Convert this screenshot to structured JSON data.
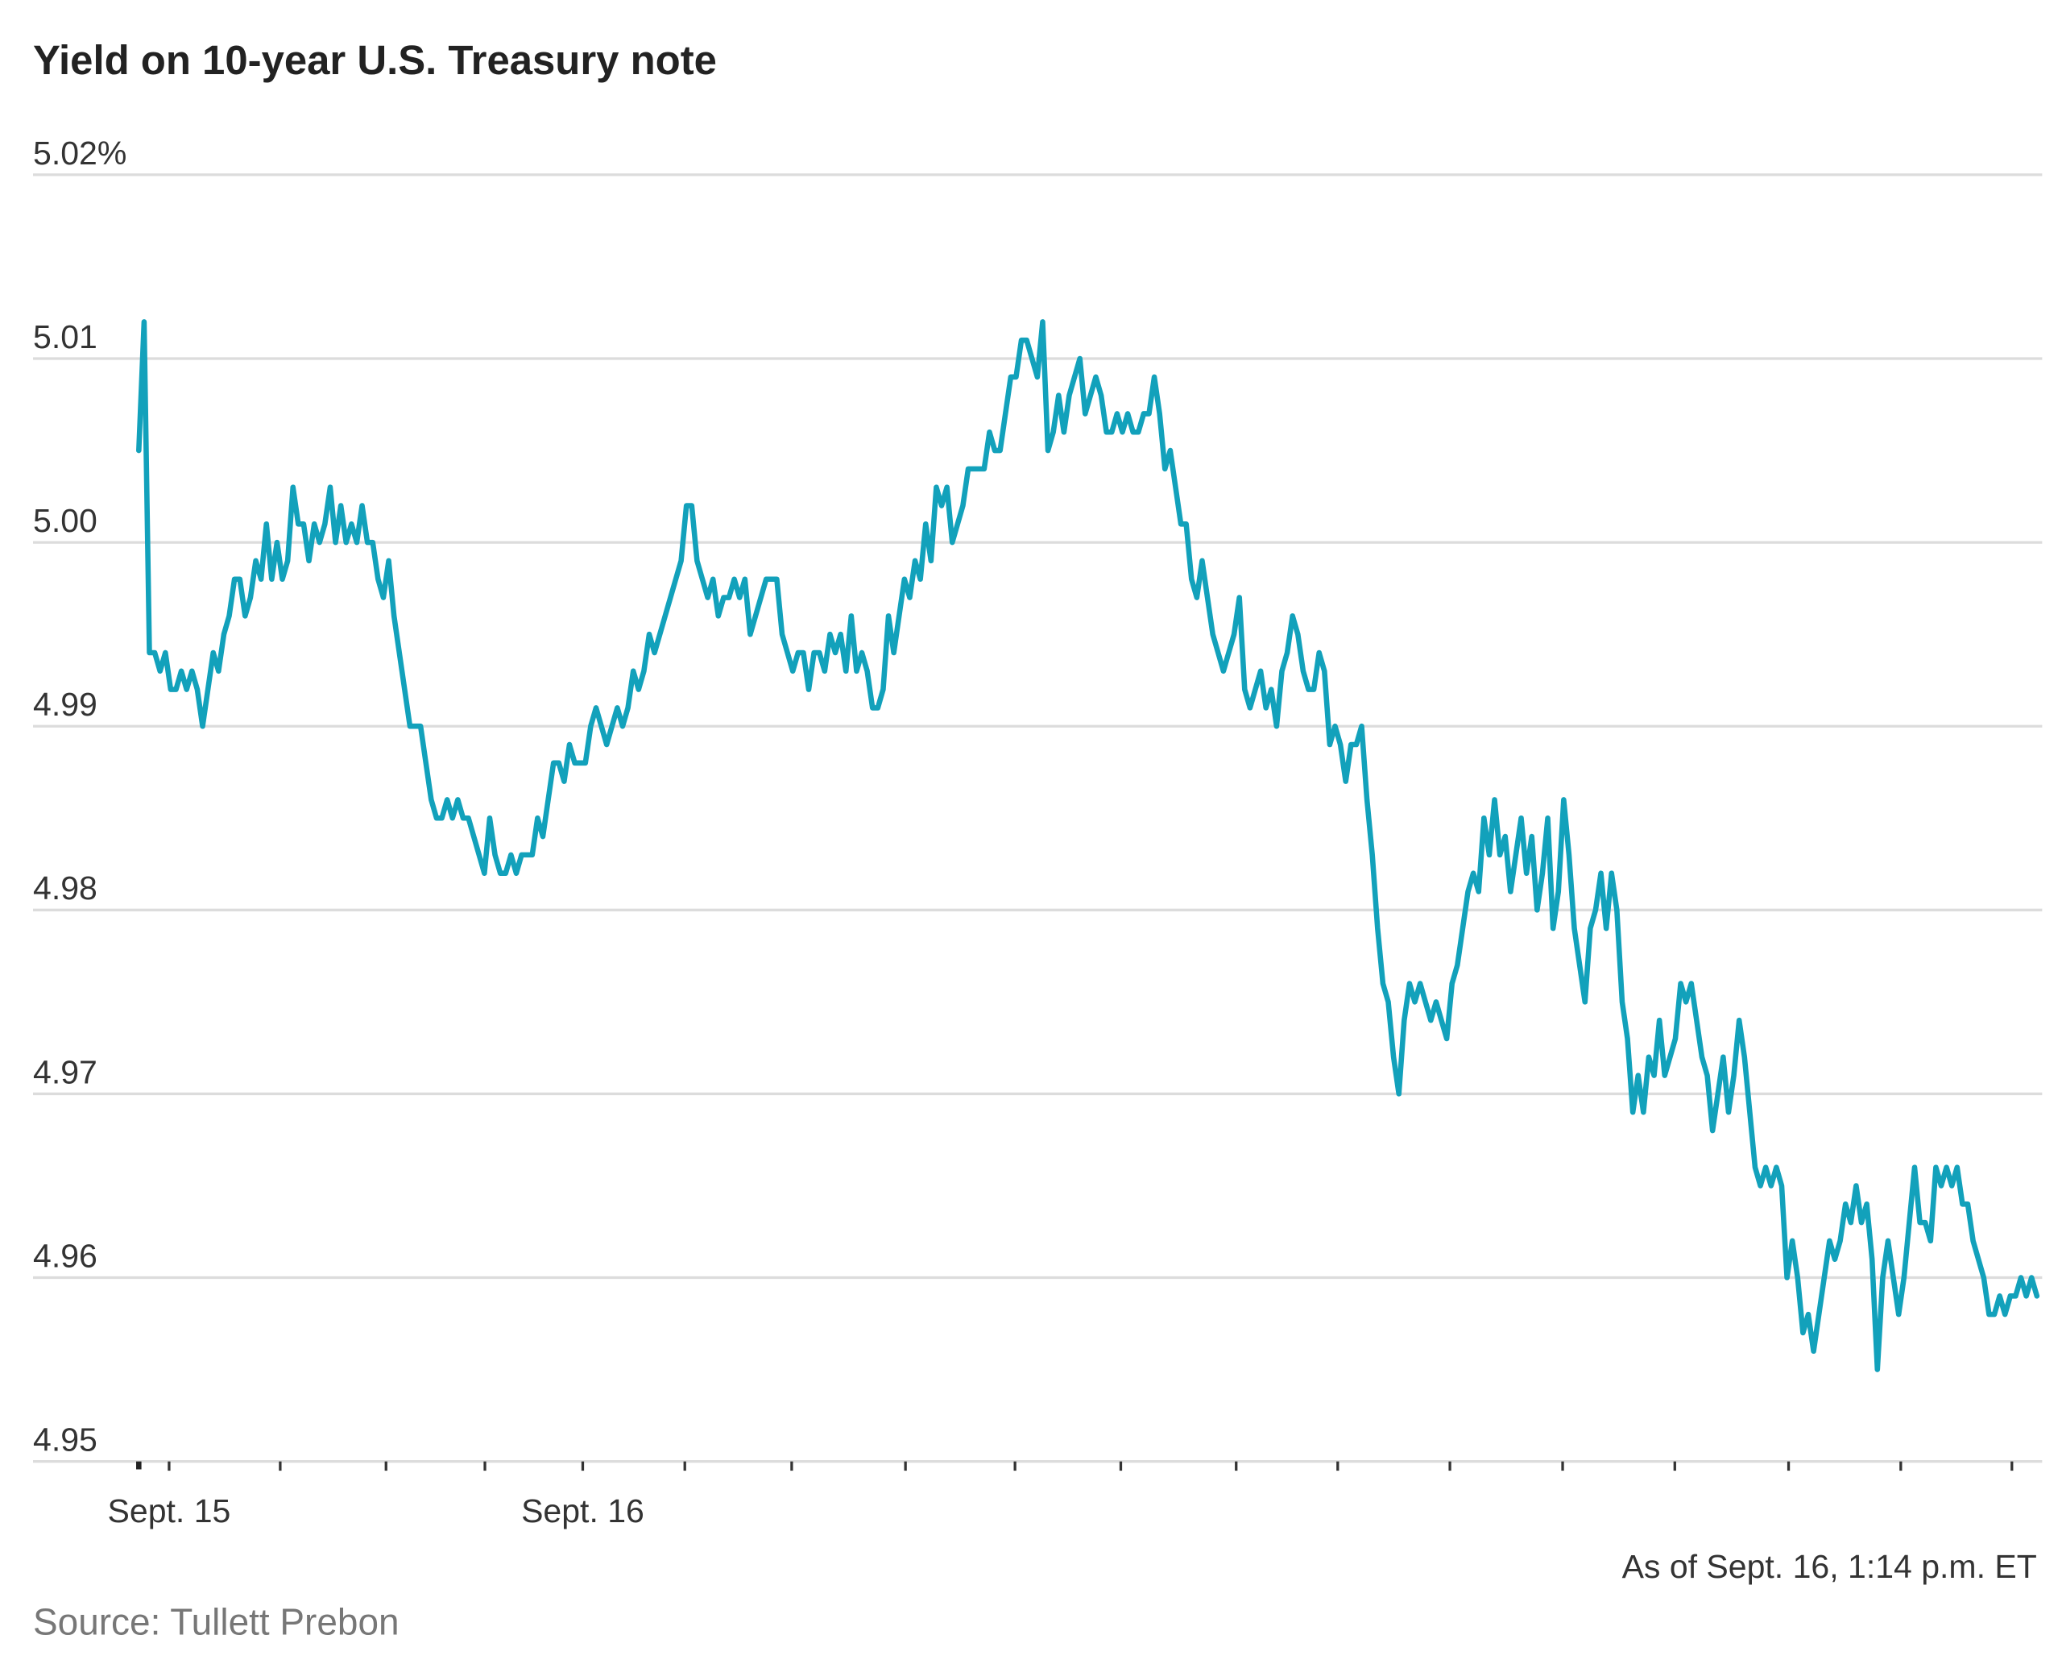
{
  "chart_data": {
    "type": "line",
    "title": "Yield on 10-year U.S. Treasury note",
    "note": "As of Sept. 16, 1:14 p.m. ET",
    "source": "Source: Tullett Prebon",
    "grid": true,
    "color": "#12a1bb",
    "xlim": [
      0,
      357
    ],
    "xticks": [
      {
        "value": 5.7,
        "label": "Sept. 15"
      },
      {
        "value": 26.6,
        "label": null
      },
      {
        "value": 46.5,
        "label": null
      },
      {
        "value": 65.1,
        "label": null
      },
      {
        "value": 83.5,
        "label": "Sept. 16"
      },
      {
        "value": 102.7,
        "label": null
      },
      {
        "value": 122.8,
        "label": null
      },
      {
        "value": 144.2,
        "label": null
      },
      {
        "value": 164.8,
        "label": null
      },
      {
        "value": 184.7,
        "label": null
      },
      {
        "value": 206.4,
        "label": null
      },
      {
        "value": 225.5,
        "label": null
      },
      {
        "value": 246.6,
        "label": null
      },
      {
        "value": 267.8,
        "label": null
      },
      {
        "value": 288.9,
        "label": null
      },
      {
        "value": 310.3,
        "label": null
      },
      {
        "value": 331.4,
        "label": null
      },
      {
        "value": 352.3,
        "label": null
      }
    ],
    "ylim": [
      4.95,
      5.02
    ],
    "yticks": [
      4.95,
      4.96,
      4.97,
      4.98,
      4.99,
      {
        "value": 5,
        "label": "5.00"
      },
      5.01,
      {
        "value": 5.02,
        "label": "5.02%"
      }
    ],
    "x": [
      0,
      1,
      2,
      3,
      4,
      5,
      6,
      7,
      8,
      9,
      10,
      11,
      12,
      13,
      14,
      15,
      16,
      17,
      18,
      19,
      20,
      21,
      22,
      23,
      24,
      25,
      26,
      27,
      28,
      29,
      30,
      31,
      32,
      33,
      34,
      35,
      36,
      37,
      38,
      39,
      40,
      41,
      42,
      43,
      44,
      45,
      46,
      47,
      48,
      49,
      50,
      51,
      52,
      53,
      54,
      55,
      56,
      57,
      58,
      59,
      60,
      61,
      62,
      63,
      64,
      65,
      66,
      67,
      68,
      69,
      70,
      71,
      72,
      73,
      74,
      75,
      76,
      77,
      78,
      79,
      80,
      81,
      82,
      83,
      84,
      85,
      86,
      87,
      88,
      89,
      90,
      91,
      92,
      93,
      94,
      95,
      96,
      97,
      98,
      99,
      100,
      101,
      102,
      103,
      104,
      105,
      106,
      107,
      108,
      109,
      110,
      111,
      112,
      113,
      114,
      115,
      116,
      117,
      118,
      119,
      120,
      121,
      122,
      123,
      124,
      125,
      126,
      127,
      128,
      129,
      130,
      131,
      132,
      133,
      134,
      135,
      136,
      137,
      138,
      139,
      140,
      141,
      142,
      143,
      144,
      145,
      146,
      147,
      148,
      149,
      150,
      151,
      152,
      153,
      154,
      155,
      156,
      157,
      158,
      159,
      160,
      161,
      162,
      163,
      164,
      165,
      166,
      167,
      168,
      169,
      170,
      171,
      172,
      173,
      174,
      175,
      176,
      177,
      178,
      179,
      180,
      181,
      182,
      183,
      184,
      185,
      186,
      187,
      188,
      189,
      190,
      191,
      192,
      193,
      194,
      195,
      196,
      197,
      198,
      199,
      200,
      201,
      202,
      203,
      204,
      205,
      206,
      207,
      208,
      209,
      210,
      211,
      212,
      213,
      214,
      215,
      216,
      217,
      218,
      219,
      220,
      221,
      222,
      223,
      224,
      225,
      226,
      227,
      228,
      229,
      230,
      231,
      232,
      233,
      234,
      235,
      236,
      237,
      238,
      239,
      240,
      241,
      242,
      243,
      244,
      245,
      246,
      247,
      248,
      249,
      250,
      251,
      252,
      253,
      254,
      255,
      256,
      257,
      258,
      259,
      260,
      261,
      262,
      263,
      264,
      265,
      266,
      267,
      268,
      269,
      270,
      271,
      272,
      273,
      274,
      275,
      276,
      277,
      278,
      279,
      280,
      281,
      282,
      283,
      284,
      285,
      286,
      287,
      288,
      289,
      290,
      291,
      292,
      293,
      294,
      295,
      296,
      297,
      298,
      299,
      300,
      301,
      302,
      303,
      304,
      305,
      306,
      307,
      308,
      309,
      310,
      311,
      312,
      313,
      314,
      315,
      316,
      317,
      318,
      319,
      320,
      321,
      322,
      323,
      324,
      325,
      326,
      327,
      328,
      329,
      330,
      331,
      332,
      333,
      334,
      335,
      336,
      337,
      338,
      339,
      340,
      341,
      342,
      343,
      344,
      345,
      346,
      347,
      348,
      349,
      350,
      351,
      352,
      353,
      354,
      355,
      356,
      357
    ],
    "values": [
      5.005,
      5.012,
      4.994,
      4.994,
      4.993,
      4.994,
      4.992,
      4.992,
      4.993,
      4.992,
      4.993,
      4.992,
      4.99,
      4.992,
      4.994,
      4.993,
      4.995,
      4.996,
      4.998,
      4.998,
      4.996,
      4.997,
      4.999,
      4.998,
      5.001,
      4.998,
      5.0,
      4.998,
      4.999,
      5.003,
      5.001,
      5.001,
      4.999,
      5.001,
      5.0,
      5.001,
      5.003,
      5.0,
      5.002,
      5.0,
      5.001,
      5.0,
      5.002,
      5.0,
      5.0,
      4.998,
      4.997,
      4.999,
      4.996,
      4.994,
      4.992,
      4.99,
      4.99,
      4.99,
      4.988,
      4.986,
      4.985,
      4.985,
      4.986,
      4.985,
      4.986,
      4.985,
      4.985,
      4.984,
      4.983,
      4.982,
      4.985,
      4.983,
      4.982,
      4.982,
      4.983,
      4.982,
      4.983,
      4.983,
      4.983,
      4.985,
      4.984,
      4.986,
      4.988,
      4.988,
      4.987,
      4.989,
      4.988,
      4.988,
      4.988,
      4.99,
      4.991,
      4.99,
      4.989,
      4.99,
      4.991,
      4.99,
      4.991,
      4.993,
      4.992,
      4.993,
      4.995,
      4.994,
      4.995,
      4.996,
      4.997,
      4.998,
      4.999,
      5.002,
      5.002,
      4.999,
      4.998,
      4.997,
      4.998,
      4.996,
      4.997,
      4.997,
      4.998,
      4.997,
      4.998,
      4.995,
      4.996,
      4.997,
      4.998,
      4.998,
      4.998,
      4.995,
      4.994,
      4.993,
      4.994,
      4.994,
      4.992,
      4.994,
      4.994,
      4.993,
      4.995,
      4.994,
      4.995,
      4.993,
      4.996,
      4.993,
      4.994,
      4.993,
      4.991,
      4.991,
      4.992,
      4.996,
      4.994,
      4.996,
      4.998,
      4.997,
      4.999,
      4.998,
      5.001,
      4.999,
      5.003,
      5.002,
      5.003,
      5.0,
      5.001,
      5.002,
      5.004,
      5.004,
      5.004,
      5.004,
      5.006,
      5.005,
      5.005,
      5.007,
      5.009,
      5.009,
      5.011,
      5.011,
      5.01,
      5.009,
      5.012,
      5.005,
      5.006,
      5.008,
      5.006,
      5.008,
      5.009,
      5.01,
      5.007,
      5.008,
      5.009,
      5.008,
      5.006,
      5.006,
      5.007,
      5.006,
      5.007,
      5.006,
      5.006,
      5.007,
      5.007,
      5.009,
      5.007,
      5.004,
      5.005,
      5.003,
      5.001,
      5.001,
      4.998,
      4.997,
      4.999,
      4.997,
      4.995,
      4.994,
      4.993,
      4.994,
      4.995,
      4.997,
      4.992,
      4.991,
      4.992,
      4.993,
      4.991,
      4.992,
      4.99,
      4.993,
      4.994,
      4.996,
      4.995,
      4.993,
      4.992,
      4.992,
      4.994,
      4.993,
      4.989,
      4.99,
      4.989,
      4.987,
      4.989,
      4.989,
      4.99,
      4.986,
      4.983,
      4.979,
      4.976,
      4.975,
      4.972,
      4.97,
      4.974,
      4.976,
      4.975,
      4.976,
      4.975,
      4.974,
      4.975,
      4.974,
      4.973,
      4.976,
      4.977,
      4.979,
      4.981,
      4.982,
      4.981,
      4.985,
      4.983,
      4.986,
      4.983,
      4.984,
      4.981,
      4.983,
      4.985,
      4.982,
      4.984,
      4.98,
      4.982,
      4.985,
      4.979,
      4.981,
      4.986,
      4.983,
      4.979,
      4.977,
      4.975,
      4.979,
      4.98,
      4.982,
      4.979,
      4.982,
      4.98,
      4.975,
      4.973,
      4.969,
      4.971,
      4.969,
      4.972,
      4.971,
      4.974,
      4.971,
      4.972,
      4.973,
      4.976,
      4.975,
      4.976,
      4.974,
      4.972,
      4.971,
      4.968,
      4.97,
      4.972,
      4.969,
      4.971,
      4.974,
      4.972,
      4.969,
      4.966,
      4.965,
      4.966,
      4.965,
      4.966,
      4.965,
      4.96,
      4.962,
      4.96,
      4.957,
      4.958,
      4.956,
      4.958,
      4.96,
      4.962,
      4.961,
      4.962,
      4.964,
      4.963,
      4.965,
      4.963,
      4.964,
      4.961,
      4.955,
      4.96,
      4.962,
      4.96,
      4.958,
      4.96,
      4.963,
      4.966,
      4.963,
      4.963,
      4.962,
      4.966,
      4.965,
      4.966,
      4.965,
      4.966,
      4.964,
      4.964,
      4.962,
      4.961,
      4.96,
      4.958,
      4.958,
      4.959,
      4.958,
      4.959,
      4.959,
      4.96,
      4.959,
      4.96,
      4.959
    ]
  }
}
